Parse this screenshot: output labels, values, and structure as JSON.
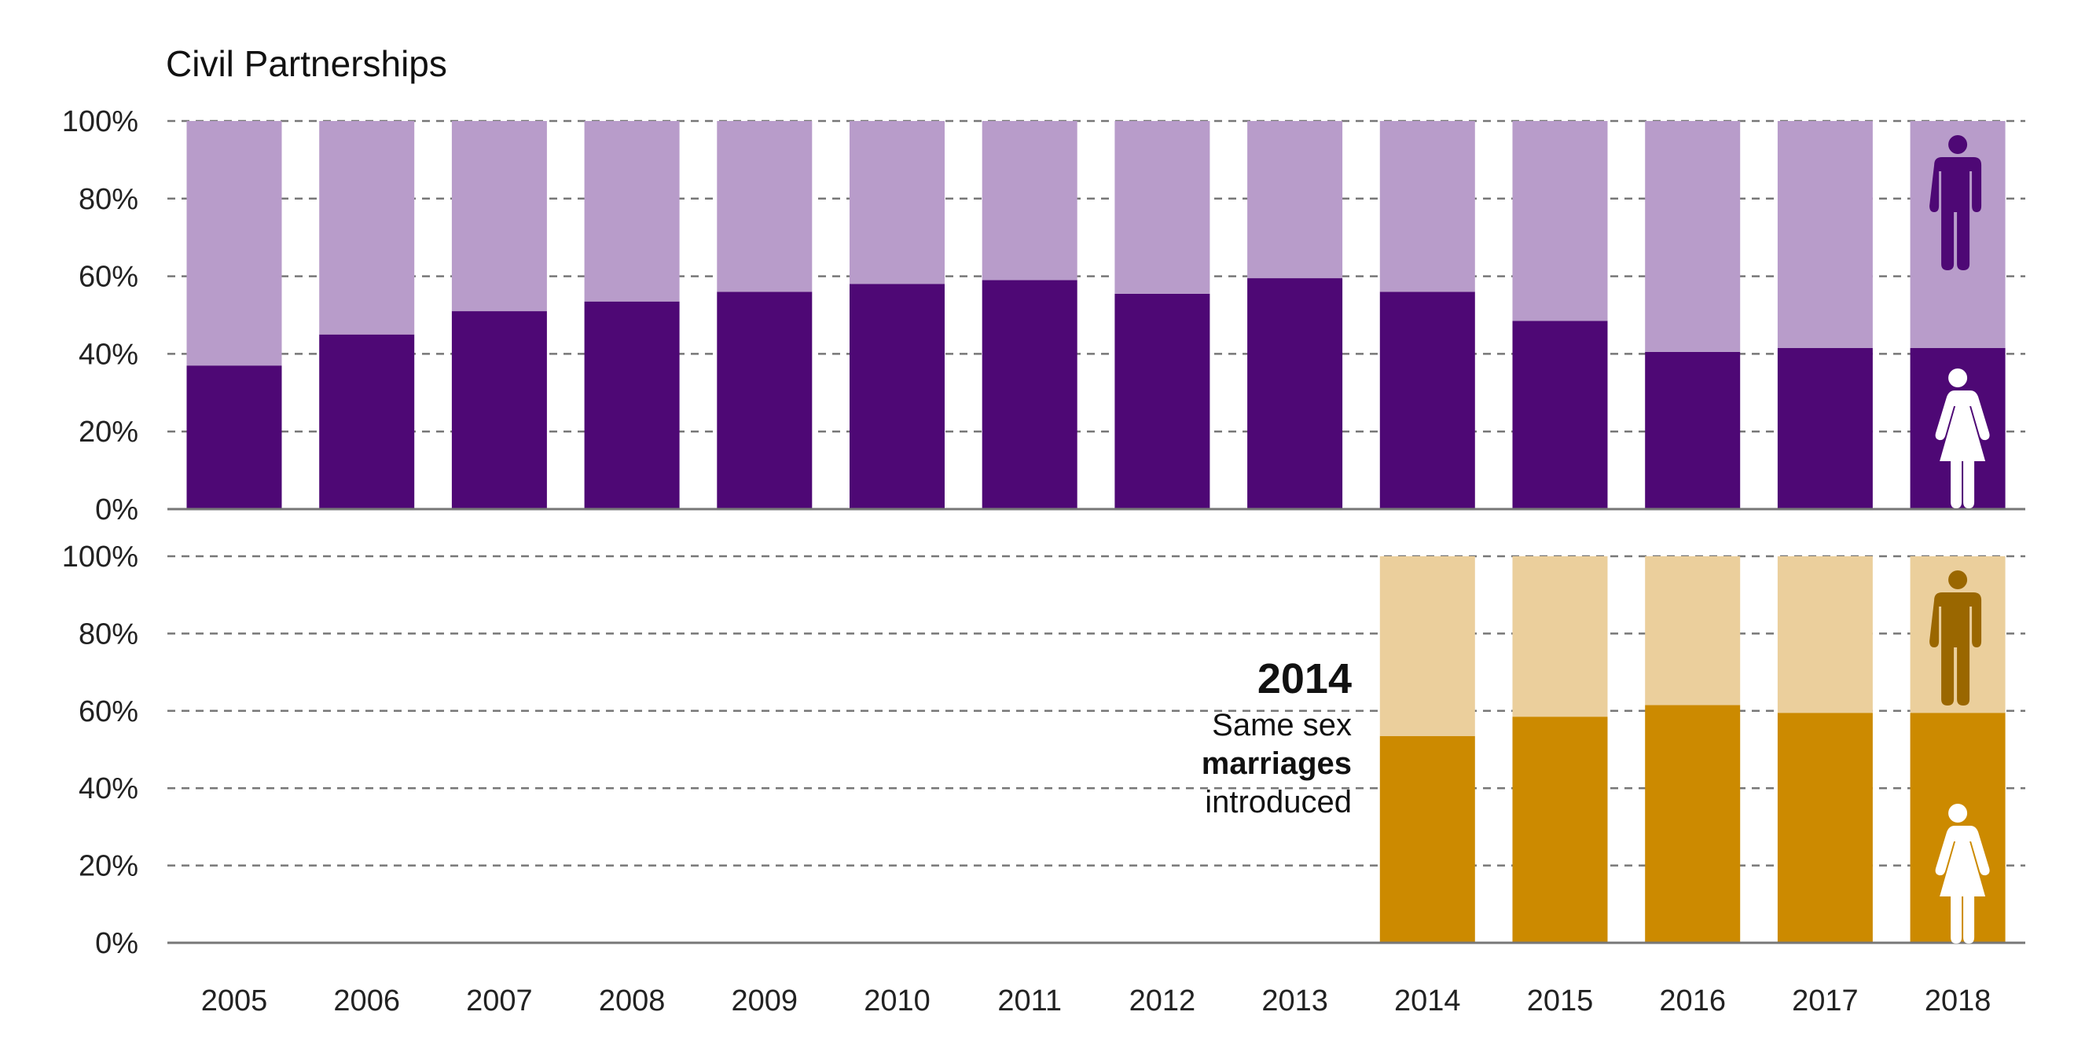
{
  "chart_data": [
    {
      "type": "bar",
      "stacked": true,
      "title": "Civil Partnerships",
      "categories": [
        "2005",
        "2006",
        "2007",
        "2008",
        "2009",
        "2010",
        "2011",
        "2012",
        "2013",
        "2014",
        "2015",
        "2016",
        "2017",
        "2018"
      ],
      "series": [
        {
          "name": "female",
          "color": "#4e0875",
          "values": [
            37,
            45,
            51,
            53.5,
            56,
            58,
            59,
            55.5,
            59.5,
            56,
            48.5,
            40.5,
            41.5,
            41.5
          ]
        },
        {
          "name": "male",
          "color": "#b89cca",
          "values": [
            63,
            55,
            49,
            46.5,
            44,
            42,
            41,
            44.5,
            40.5,
            44,
            51.5,
            59.5,
            58.5,
            58.5
          ]
        }
      ],
      "yticks": [
        "0%",
        "20%",
        "40%",
        "60%",
        "80%",
        "100%"
      ],
      "ylim": [
        0,
        100
      ],
      "grid": true,
      "icons": {
        "male": "male-figure-icon",
        "female": "female-figure-icon",
        "male_color": "#4e0875",
        "female_color": "#ffffff"
      }
    },
    {
      "type": "bar",
      "stacked": true,
      "title": "",
      "categories": [
        "2005",
        "2006",
        "2007",
        "2008",
        "2009",
        "2010",
        "2011",
        "2012",
        "2013",
        "2014",
        "2015",
        "2016",
        "2017",
        "2018"
      ],
      "series": [
        {
          "name": "female",
          "color": "#cc8a00",
          "values": [
            null,
            null,
            null,
            null,
            null,
            null,
            null,
            null,
            null,
            53.5,
            58.5,
            61.5,
            59.5,
            59.5
          ]
        },
        {
          "name": "male",
          "color": "#ebcf9c",
          "values": [
            null,
            null,
            null,
            null,
            null,
            null,
            null,
            null,
            null,
            46.5,
            41.5,
            38.5,
            40.5,
            40.5
          ]
        }
      ],
      "yticks": [
        "0%",
        "20%",
        "40%",
        "60%",
        "80%",
        "100%"
      ],
      "ylim": [
        0,
        100
      ],
      "grid": true,
      "annotation": {
        "year": "2014",
        "line1": "Same sex",
        "line2": "marriages",
        "line3": "introduced"
      },
      "icons": {
        "male": "male-figure-icon",
        "female": "female-figure-icon",
        "male_color": "#9a6700",
        "female_color": "#ffffff"
      }
    }
  ]
}
